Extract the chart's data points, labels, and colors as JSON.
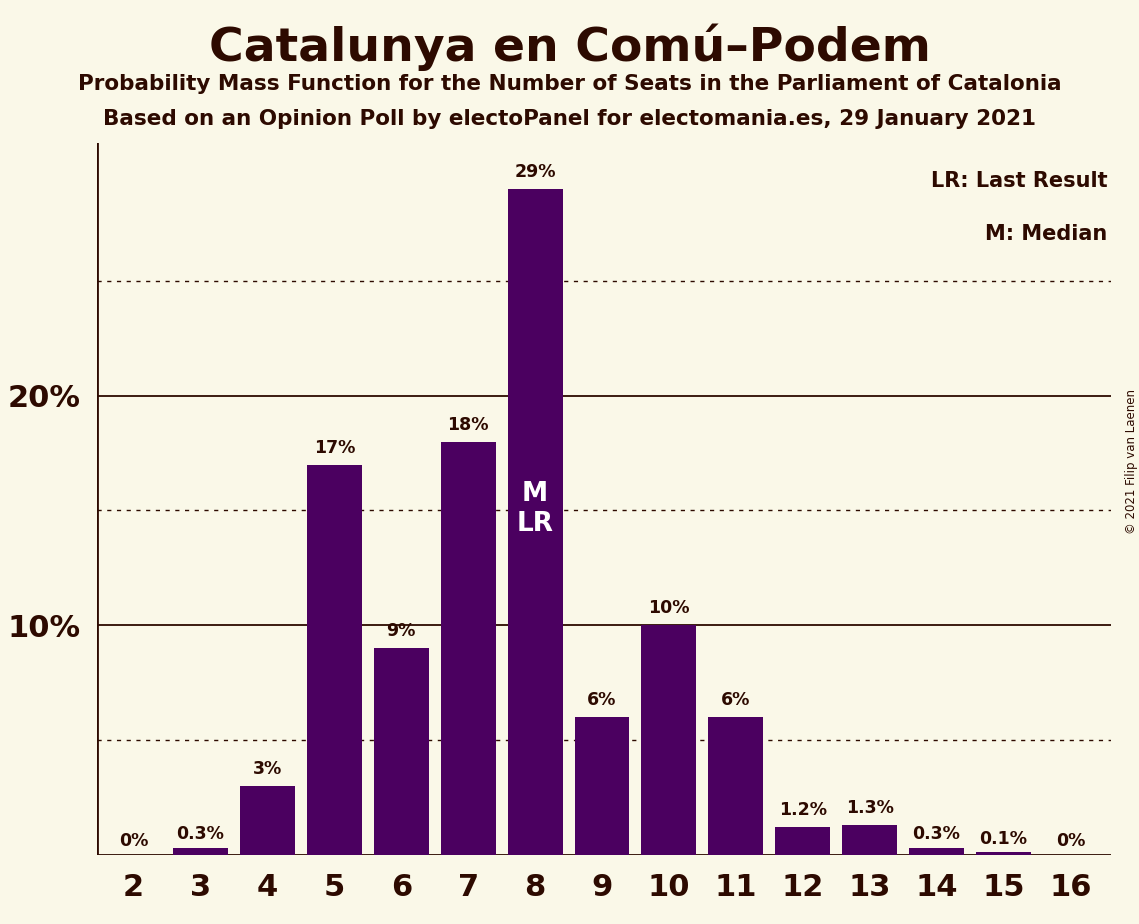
{
  "title": "Catalunya en Comú–Podem",
  "subtitle1": "Probability Mass Function for the Number of Seats in the Parliament of Catalonia",
  "subtitle2": "Based on an Opinion Poll by electoPanel for electomania.es, 29 January 2021",
  "copyright": "© 2021 Filip van Laenen",
  "categories": [
    2,
    3,
    4,
    5,
    6,
    7,
    8,
    9,
    10,
    11,
    12,
    13,
    14,
    15,
    16
  ],
  "values": [
    0.0,
    0.3,
    3.0,
    17.0,
    9.0,
    18.0,
    29.0,
    6.0,
    10.0,
    6.0,
    1.2,
    1.3,
    0.3,
    0.1,
    0.0
  ],
  "labels": [
    "0%",
    "0.3%",
    "3%",
    "17%",
    "9%",
    "18%",
    "29%",
    "6%",
    "10%",
    "6%",
    "1.2%",
    "1.3%",
    "0.3%",
    "0.1%",
    "0%"
  ],
  "bar_color": "#4B0060",
  "background_color": "#FAF8E8",
  "text_color": "#2D0A00",
  "yticks_solid": [
    10,
    20
  ],
  "yticks_dotted": [
    5,
    15,
    25
  ],
  "ymax": 31,
  "median_seat": 8,
  "last_result_seat": 8,
  "legend_lr": "LR: Last Result",
  "legend_m": "M: Median"
}
